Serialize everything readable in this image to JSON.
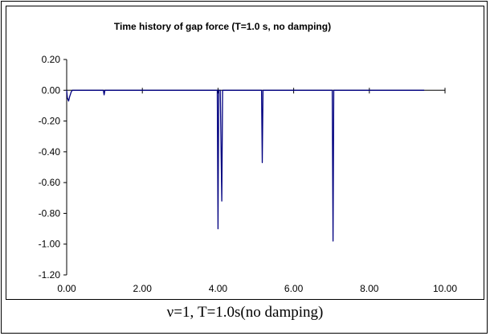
{
  "chart_data": {
    "type": "line",
    "title": "Time history of gap force (T=1.0 s, no damping)",
    "xlabel": "",
    "ylabel": "",
    "xlim": [
      0,
      10
    ],
    "ylim": [
      -1.2,
      0.2
    ],
    "xticks": [
      0,
      2,
      4,
      6,
      8,
      10
    ],
    "xtick_labels": [
      "0.00",
      "2.00",
      "4.00",
      "6.00",
      "8.00",
      "10.00"
    ],
    "yticks": [
      0.2,
      0,
      -0.2,
      -0.4,
      -0.6,
      -0.8,
      -1.0,
      -1.2
    ],
    "ytick_labels": [
      "0.20",
      "0.00",
      "-0.20",
      "-0.40",
      "-0.60",
      "-0.80",
      "-1.00",
      "-1.20"
    ],
    "grid": false,
    "legend": "none",
    "line_color": "#000080",
    "series": [
      {
        "x": [
          0,
          0.02,
          0.05,
          0.08,
          0.12,
          0.15,
          0.18,
          0.97,
          0.99,
          1.01,
          1.03,
          3.98,
          4.0,
          4.02,
          4.06,
          4.1,
          4.12,
          4.15,
          5.15,
          5.17,
          5.19,
          5.21,
          7.02,
          7.04,
          7.06,
          7.08,
          9.45
        ],
        "y": [
          0,
          -0.05,
          -0.07,
          -0.04,
          -0.01,
          0,
          0,
          0,
          -0.03,
          0,
          0,
          0,
          -0.9,
          0,
          0,
          -0.72,
          0,
          0,
          0,
          -0.47,
          0,
          0,
          0,
          -0.98,
          0,
          0,
          0
        ]
      }
    ]
  },
  "caption": "ν=1, T=1.0s(no damping)"
}
